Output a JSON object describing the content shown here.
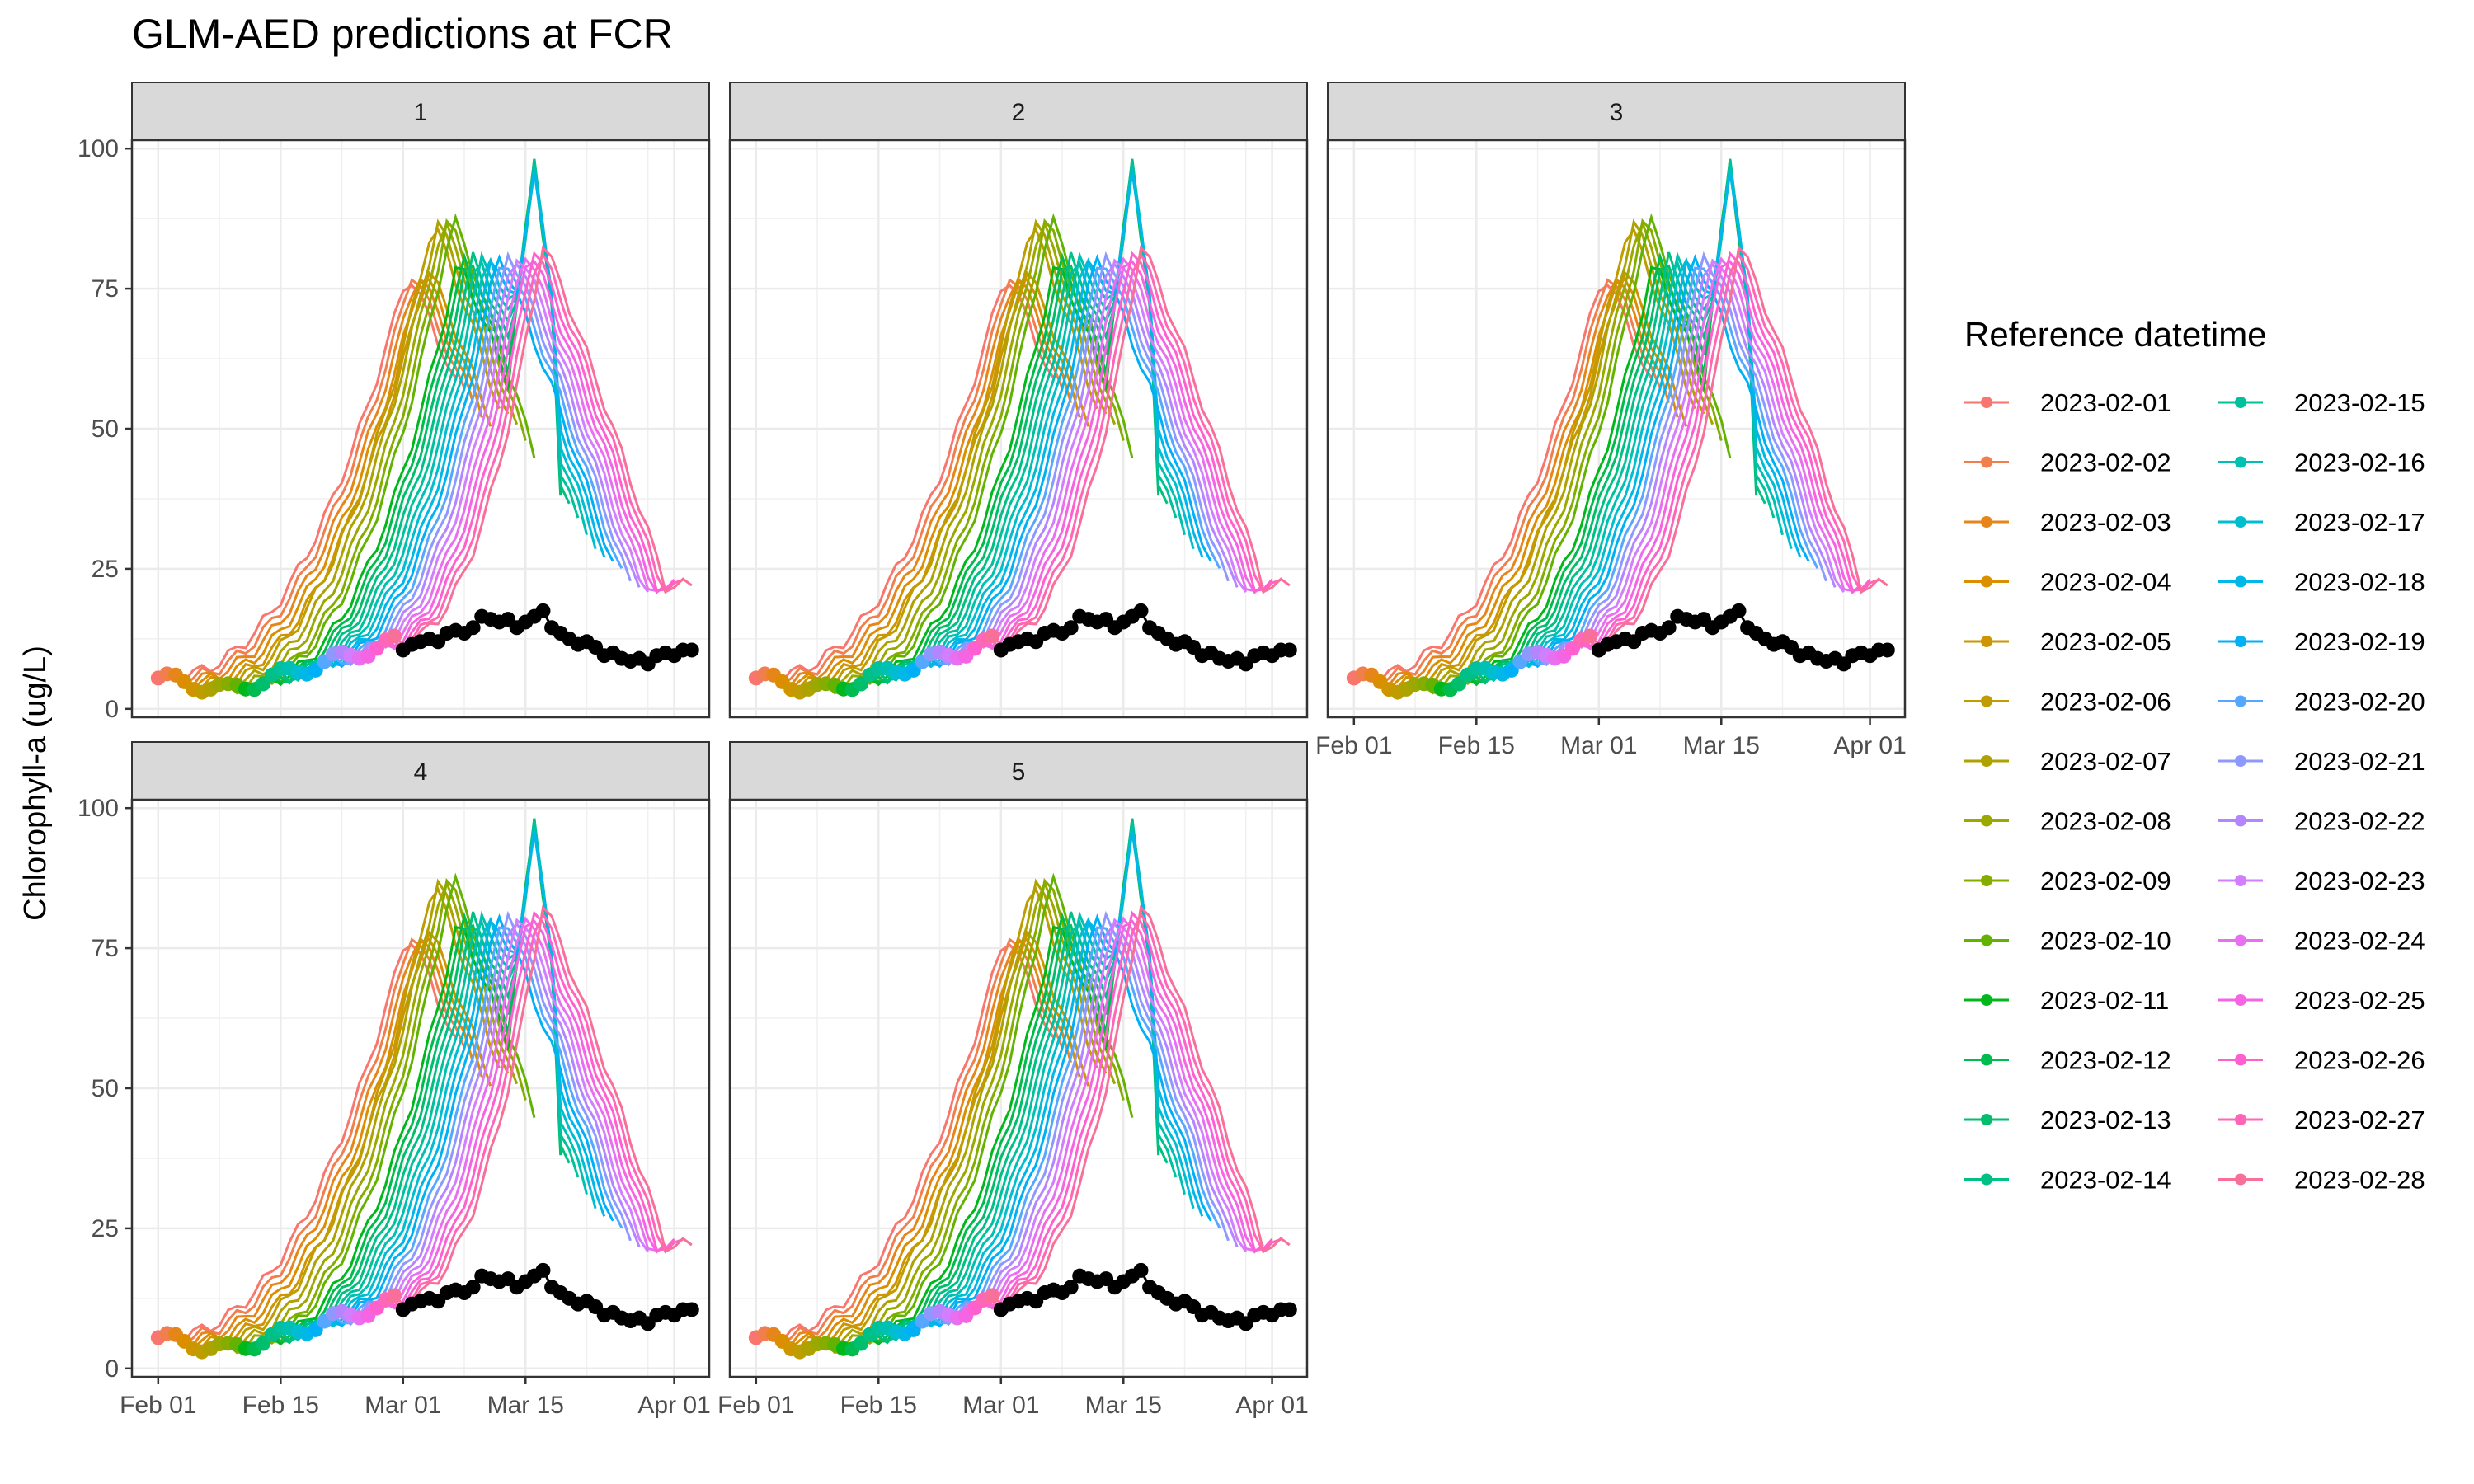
{
  "chart_data": {
    "type": "line",
    "title": "GLM-AED predictions at FCR",
    "xlabel": "",
    "ylabel": "Chlorophyll-a (ug/L)",
    "facets": [
      "1",
      "2",
      "3",
      "4",
      "5"
    ],
    "x_range": [
      "2023-01-29",
      "2023-04-05"
    ],
    "ylim": [
      -1.5,
      101.5
    ],
    "x_ticks": [
      "2023-02-01",
      "2023-02-15",
      "2023-03-01",
      "2023-03-15",
      "2023-04-01"
    ],
    "x_tick_labels": [
      "Feb 01",
      "Feb 15",
      "Mar 01",
      "Mar 15",
      "Apr 01"
    ],
    "y_ticks": [
      0,
      25,
      50,
      75,
      100
    ],
    "y_tick_labels": [
      "0",
      "25",
      "50",
      "75",
      "100"
    ],
    "legend": {
      "title": "Reference datetime",
      "position": "right",
      "entries": [
        "2023-02-01",
        "2023-02-02",
        "2023-02-03",
        "2023-02-04",
        "2023-02-05",
        "2023-02-06",
        "2023-02-07",
        "2023-02-08",
        "2023-02-09",
        "2023-02-10",
        "2023-02-11",
        "2023-02-12",
        "2023-02-13",
        "2023-02-14",
        "2023-02-15",
        "2023-02-16",
        "2023-02-17",
        "2023-02-18",
        "2023-02-19",
        "2023-02-20",
        "2023-02-21",
        "2023-02-22",
        "2023-02-23",
        "2023-02-24",
        "2023-02-25",
        "2023-02-26",
        "2023-02-27",
        "2023-02-28"
      ],
      "colors": [
        "#F8766D",
        "#F07F4D",
        "#E6861A",
        "#DB8E00",
        "#CE9500",
        "#BF9C00",
        "#AEA200",
        "#9BA800",
        "#84AD00",
        "#64B200",
        "#00B81B",
        "#00BB4E",
        "#00BE6C",
        "#00C085",
        "#00C19C",
        "#00C0B2",
        "#00BDD0",
        "#00B7E8",
        "#00B0F6",
        "#56A7FF",
        "#8E99FF",
        "#B385FF",
        "#D17EFF",
        "#E86FF0",
        "#F564E3",
        "#FE61CF",
        "#FF66B5",
        "#F8709A"
      ]
    },
    "grid": true,
    "observations": {
      "name": "observed",
      "color": "#000000",
      "x": [
        "2023-03-01",
        "2023-03-02",
        "2023-03-03",
        "2023-03-04",
        "2023-03-05",
        "2023-03-06",
        "2023-03-07",
        "2023-03-08",
        "2023-03-09",
        "2023-03-10",
        "2023-03-11",
        "2023-03-12",
        "2023-03-13",
        "2023-03-14",
        "2023-03-15",
        "2023-03-16",
        "2023-03-17",
        "2023-03-18",
        "2023-03-19",
        "2023-03-20",
        "2023-03-21",
        "2023-03-22",
        "2023-03-23",
        "2023-03-24",
        "2023-03-25",
        "2023-03-26",
        "2023-03-27",
        "2023-03-28",
        "2023-03-29",
        "2023-03-30",
        "2023-03-31",
        "2023-04-01",
        "2023-04-02",
        "2023-04-03"
      ],
      "values": [
        10.5,
        11.5,
        12,
        12.5,
        12,
        13.5,
        14,
        13.5,
        14.5,
        16.5,
        16,
        15.5,
        16,
        14.5,
        15.5,
        16.5,
        17.5,
        14.5,
        13.5,
        12.5,
        11.5,
        12,
        11,
        9.5,
        10,
        9,
        8.5,
        9,
        8,
        9.5,
        10,
        9.5,
        10.5,
        10.5
      ]
    },
    "series_model": {
      "horizon_days": 34,
      "start_value": 5.5,
      "min_value": 3.3,
      "min_day": 8,
      "peak_day_first": 28.5,
      "peak_day_last": 44,
      "peak_value_first": 78,
      "peak_value_last": 83,
      "secondary_peak": {
        "date": "2023-03-16",
        "value": 97
      },
      "late_decline_to": 22
    }
  }
}
